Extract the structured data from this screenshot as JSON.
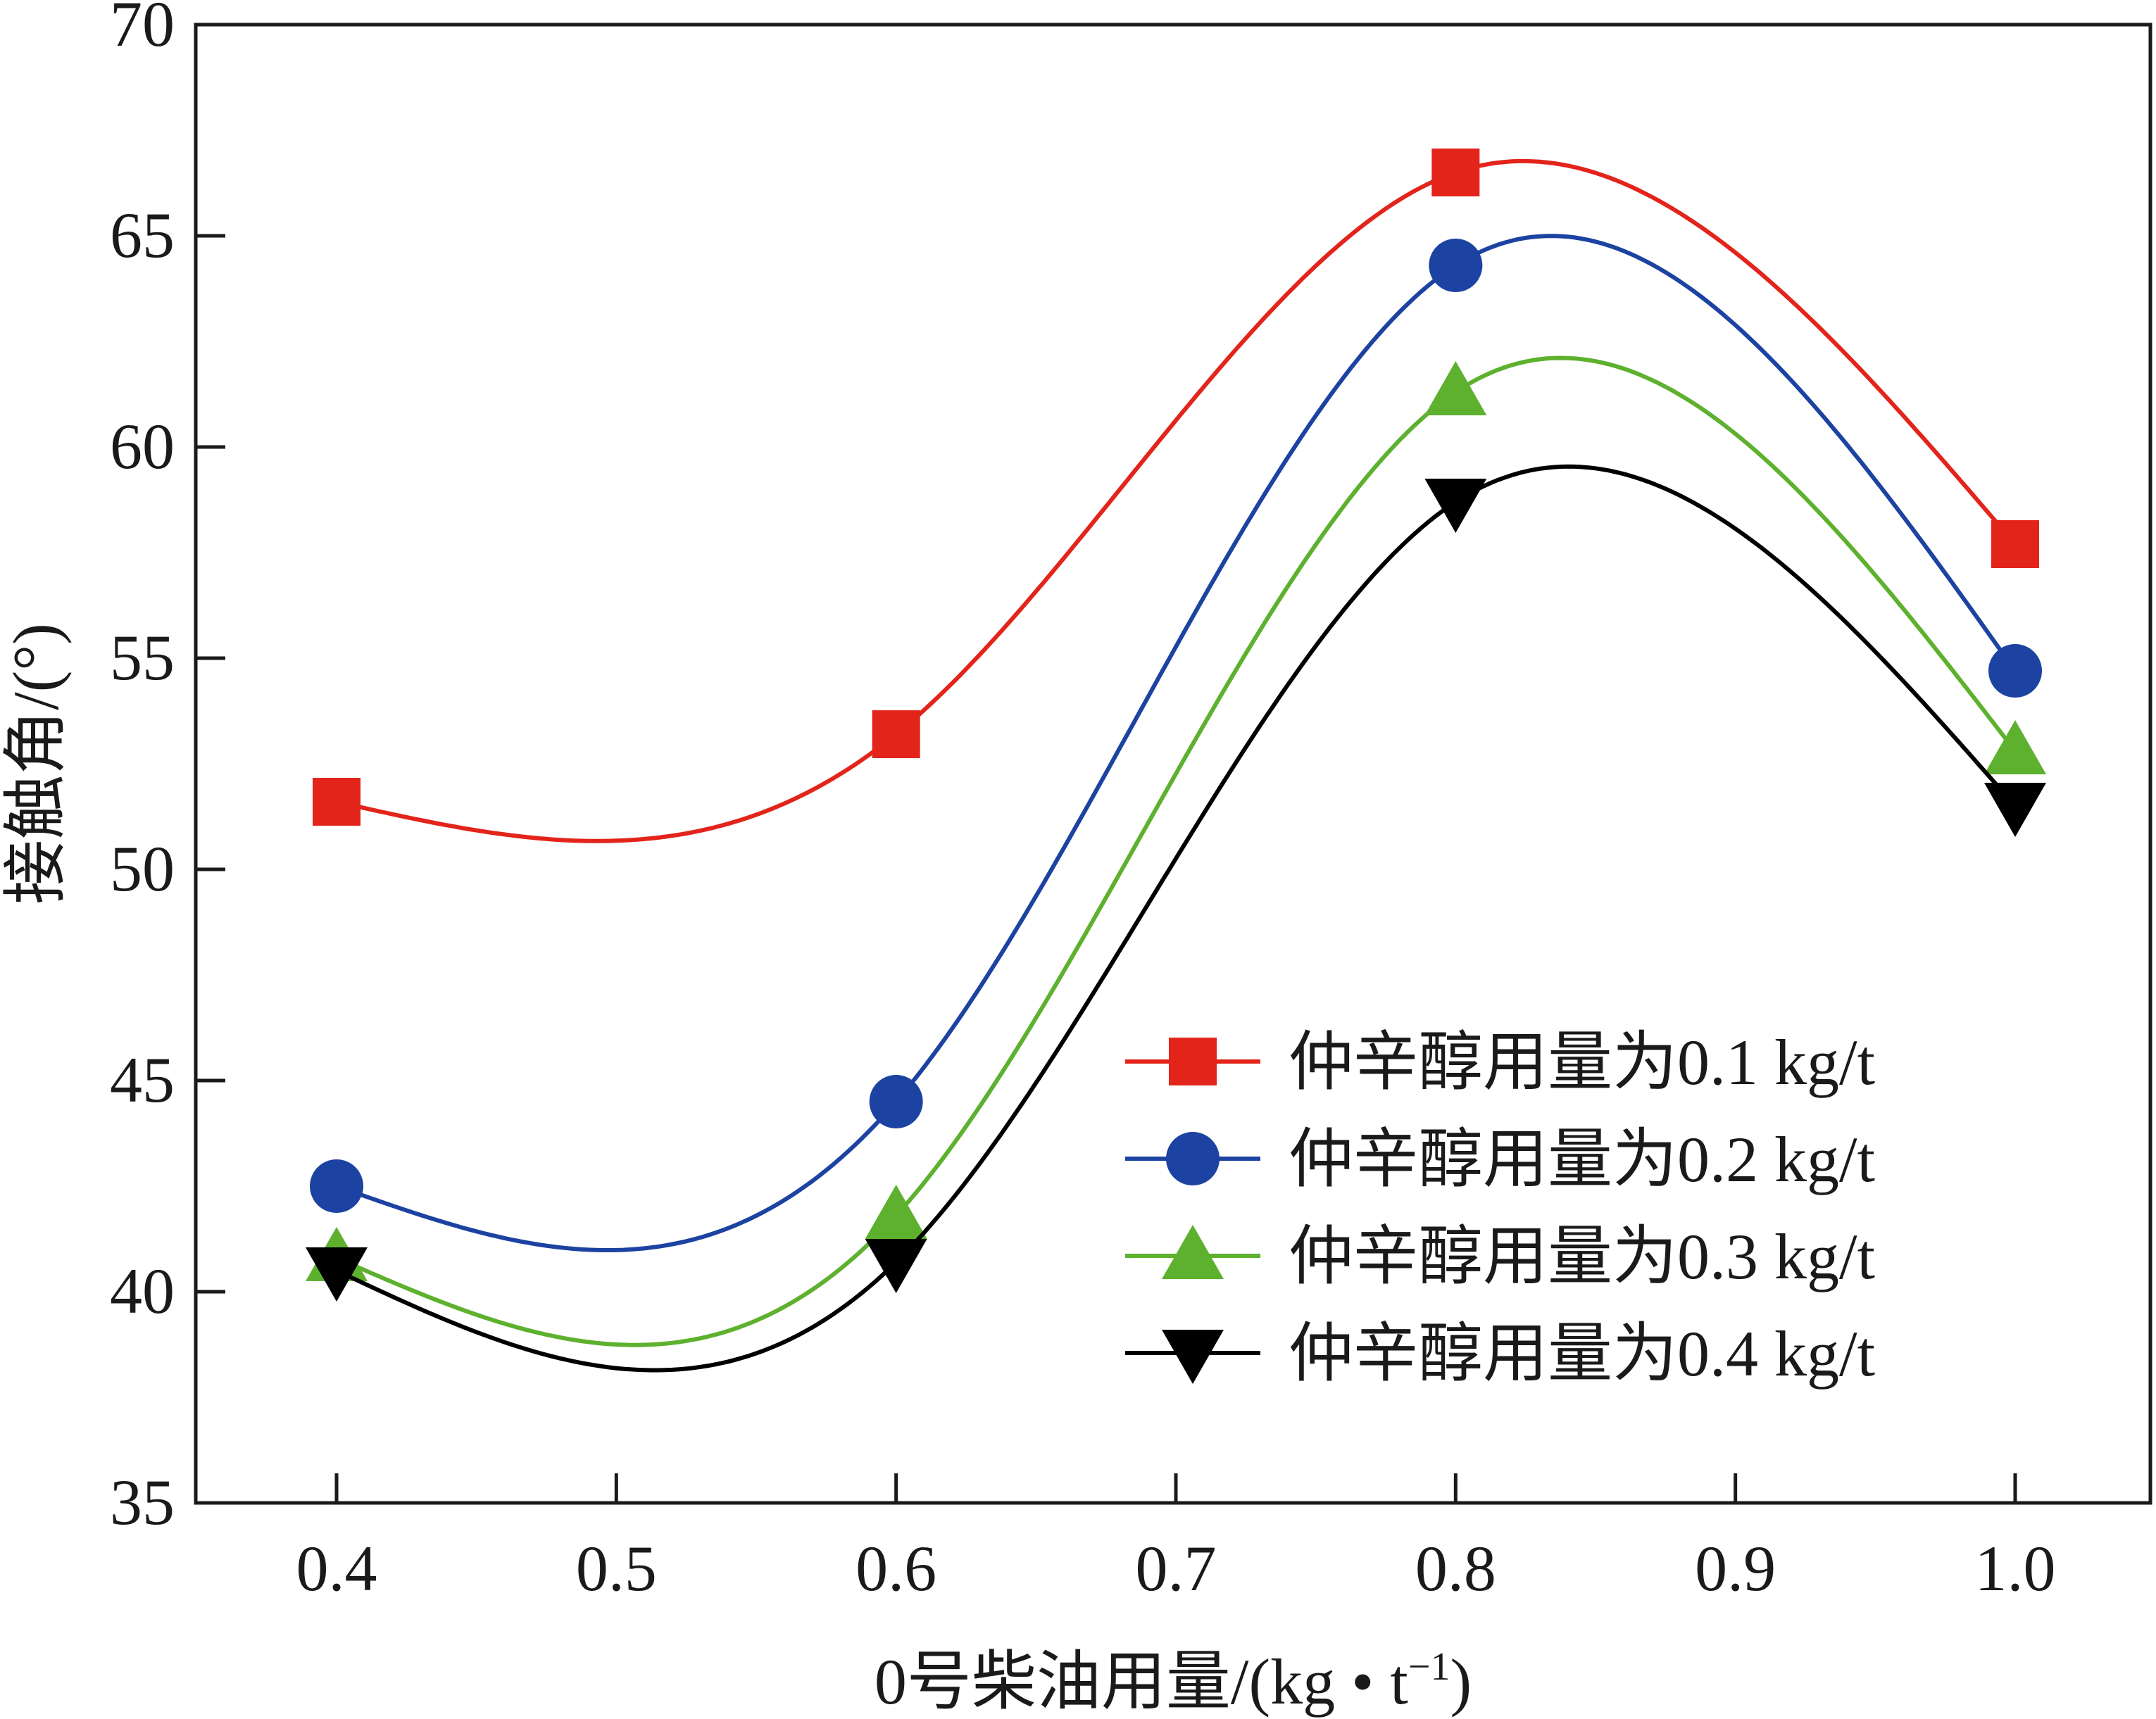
{
  "chart_data": {
    "type": "line",
    "title": "",
    "xlabel": "0号柴油用量/(kg • t",
    "xlabel_superscript": "−1",
    "xlabel_suffix": ")",
    "ylabel": "接触角/(°)",
    "xlim": [
      0.35,
      1.04
    ],
    "ylim": [
      35,
      70
    ],
    "xticks": [
      0.4,
      0.5,
      0.6,
      0.7,
      0.8,
      0.9,
      1.0
    ],
    "xtick_labels": [
      "0.4",
      "0.5",
      "0.6",
      "0.7",
      "0.8",
      "0.9",
      "1.0"
    ],
    "yticks": [
      35,
      40,
      45,
      50,
      55,
      60,
      65,
      70
    ],
    "ytick_labels": [
      "35",
      "40",
      "45",
      "50",
      "55",
      "60",
      "65",
      "70"
    ],
    "x": [
      0.4,
      0.6,
      0.8,
      1.0
    ],
    "grid": false,
    "legend_position": "bottom-right",
    "smooth": true,
    "series": [
      {
        "name": "仲辛醇用量为0.1 kg/t",
        "values": [
          51.6,
          53.2,
          66.5,
          57.7
        ],
        "color": "#e3241b",
        "marker": "square"
      },
      {
        "name": "仲辛醇用量为0.2 kg/t",
        "values": [
          42.5,
          44.5,
          64.3,
          54.7
        ],
        "color": "#1c43a1",
        "marker": "circle"
      },
      {
        "name": "仲辛醇用量为0.3 kg/t",
        "values": [
          40.8,
          41.8,
          61.3,
          52.8
        ],
        "color": "#5db12e",
        "marker": "triangle-up"
      },
      {
        "name": "仲辛醇用量为0.4 kg/t",
        "values": [
          40.5,
          40.7,
          58.7,
          51.5
        ],
        "color": "#000000",
        "marker": "triangle-down"
      }
    ]
  }
}
